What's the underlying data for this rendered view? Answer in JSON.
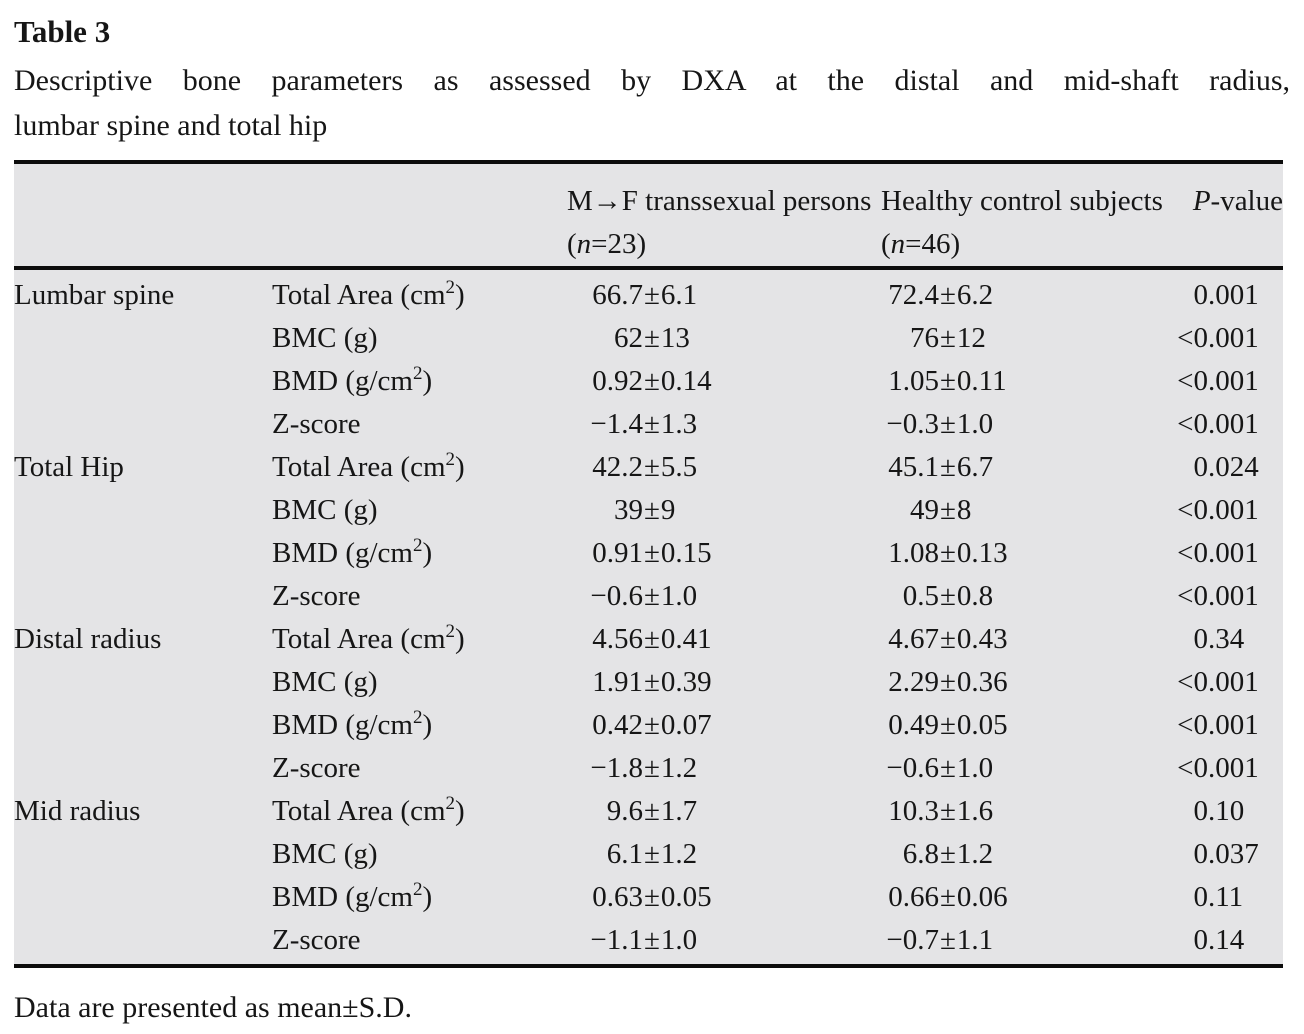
{
  "page": {
    "title": "Table 3",
    "caption_line1": "Descriptive bone parameters as assessed by DXA at the distal and mid-shaft radius,",
    "caption_line2": "lumbar spine and total hip",
    "footnote": "Data are presented as mean±S.D."
  },
  "table": {
    "header": {
      "col1": "",
      "col2": "",
      "col3_segments": [
        {
          "text": "M→F transsexual persons (",
          "italic": false
        },
        {
          "text": "n",
          "italic": true
        },
        {
          "text": "=23)",
          "italic": false
        }
      ],
      "col4_segments": [
        {
          "text": "Healthy control subjects (",
          "italic": false
        },
        {
          "text": "n",
          "italic": true
        },
        {
          "text": "=46)",
          "italic": false
        }
      ],
      "col5_segments": [
        {
          "text": "P",
          "italic": true
        },
        {
          "text": "-value",
          "italic": false
        }
      ]
    },
    "groups": [
      {
        "section": "Lumbar spine",
        "rows": [
          {
            "param": "Total Area (cm²)",
            "mf": "66.7±6.1",
            "hc": "72.4±6.2",
            "p": "0.001"
          },
          {
            "param": "BMC (g)",
            "mf": "62±13",
            "hc": "76±12",
            "p": "<0.001"
          },
          {
            "param": "BMD (g/cm²)",
            "mf": "0.92±0.14",
            "hc": "1.05±0.11",
            "p": "<0.001"
          },
          {
            "param": "Z-score",
            "mf": "−1.4±1.3",
            "hc": "−0.3±1.0",
            "p": "<0.001"
          }
        ]
      },
      {
        "section": "Total Hip",
        "rows": [
          {
            "param": "Total Area (cm²)",
            "mf": "42.2±5.5",
            "hc": "45.1±6.7",
            "p": "0.024"
          },
          {
            "param": "BMC (g)",
            "mf": "39±9",
            "hc": "49±8",
            "p": "<0.001"
          },
          {
            "param": "BMD (g/cm²)",
            "mf": "0.91±0.15",
            "hc": "1.08±0.13",
            "p": "<0.001"
          },
          {
            "param": "Z-score",
            "mf": "−0.6±1.0",
            "hc": "0.5±0.8",
            "p": "<0.001"
          }
        ]
      },
      {
        "section": "Distal radius",
        "rows": [
          {
            "param": "Total Area (cm²)",
            "mf": "4.56±0.41",
            "hc": "4.67±0.43",
            "p": "0.34"
          },
          {
            "param": "BMC (g)",
            "mf": "1.91±0.39",
            "hc": "2.29±0.36",
            "p": "<0.001"
          },
          {
            "param": "BMD (g/cm²)",
            "mf": "0.42±0.07",
            "hc": "0.49±0.05",
            "p": "<0.001"
          },
          {
            "param": "Z-score",
            "mf": "−1.8±1.2",
            "hc": "−0.6±1.0",
            "p": "<0.001"
          }
        ]
      },
      {
        "section": "Mid radius",
        "rows": [
          {
            "param": "Total Area (cm²)",
            "mf": "9.6±1.7",
            "hc": "10.3±1.6",
            "p": "0.10"
          },
          {
            "param": "BMC (g)",
            "mf": "6.1±1.2",
            "hc": "6.8±1.2",
            "p": "0.037"
          },
          {
            "param": "BMD (g/cm²)",
            "mf": "0.63±0.05",
            "hc": "0.66±0.06",
            "p": "0.11"
          },
          {
            "param": "Z-score",
            "mf": "−1.1±1.0",
            "hc": "−0.7±1.1",
            "p": "0.14"
          }
        ]
      }
    ]
  }
}
